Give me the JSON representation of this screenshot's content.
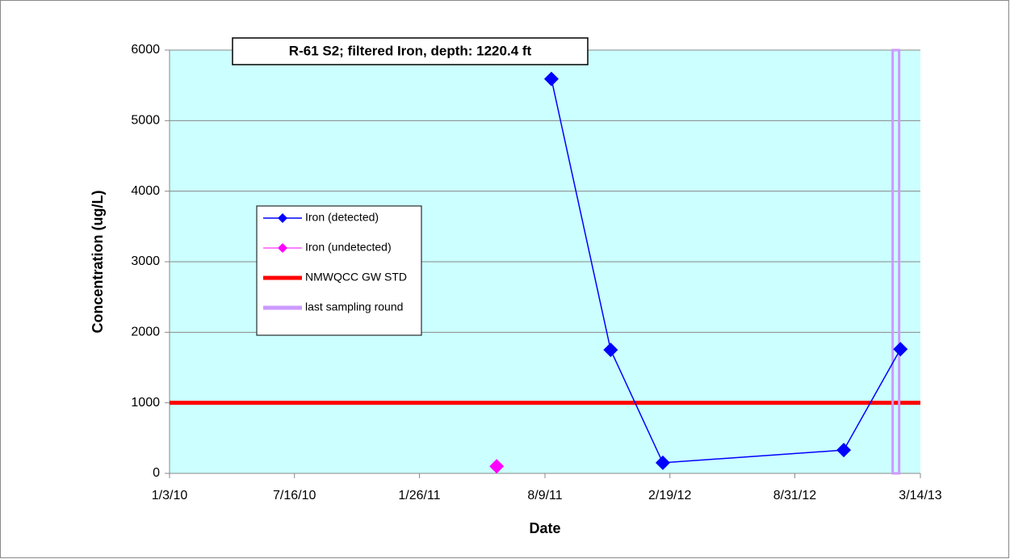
{
  "chart_data": {
    "type": "line",
    "title": "R-61 S2;  filtered Iron, depth: 1220.4 ft",
    "x_label": "Date",
    "y_label": "Concentration (ug/L)",
    "xlim": [
      "2010-01-03",
      "2013-03-14"
    ],
    "xticks": [
      {
        "value": "2010-01-03",
        "label": "1/3/10"
      },
      {
        "value": "2010-07-16",
        "label": "7/16/10"
      },
      {
        "value": "2011-01-26",
        "label": "1/26/11"
      },
      {
        "value": "2011-08-09",
        "label": "8/9/11"
      },
      {
        "value": "2012-02-19",
        "label": "2/19/12"
      },
      {
        "value": "2012-08-31",
        "label": "8/31/12"
      },
      {
        "value": "2013-03-14",
        "label": "3/14/13"
      }
    ],
    "ylim": [
      0,
      6000
    ],
    "yticks": [
      0,
      1000,
      2000,
      3000,
      4000,
      5000,
      6000
    ],
    "grid": true,
    "background": "#ccffff",
    "series": [
      {
        "name": "Iron (detected)",
        "color": "#0000ff",
        "x": [
          "2011-08-19",
          "2011-11-19",
          "2012-02-08",
          "2012-11-15",
          "2013-02-11"
        ],
        "values": [
          5590,
          1750,
          150,
          330,
          1760
        ]
      },
      {
        "name": "Iron (undetected)",
        "color": "#ff00ff",
        "x": [
          "2011-05-26"
        ],
        "values": [
          100
        ]
      }
    ],
    "standard": {
      "name": "NMWQCC GW STD",
      "color": "#ff0000",
      "value": 1000
    },
    "last_round": {
      "name": "last sampling round",
      "color": "#cc99ff",
      "x": "2013-02-04"
    }
  }
}
